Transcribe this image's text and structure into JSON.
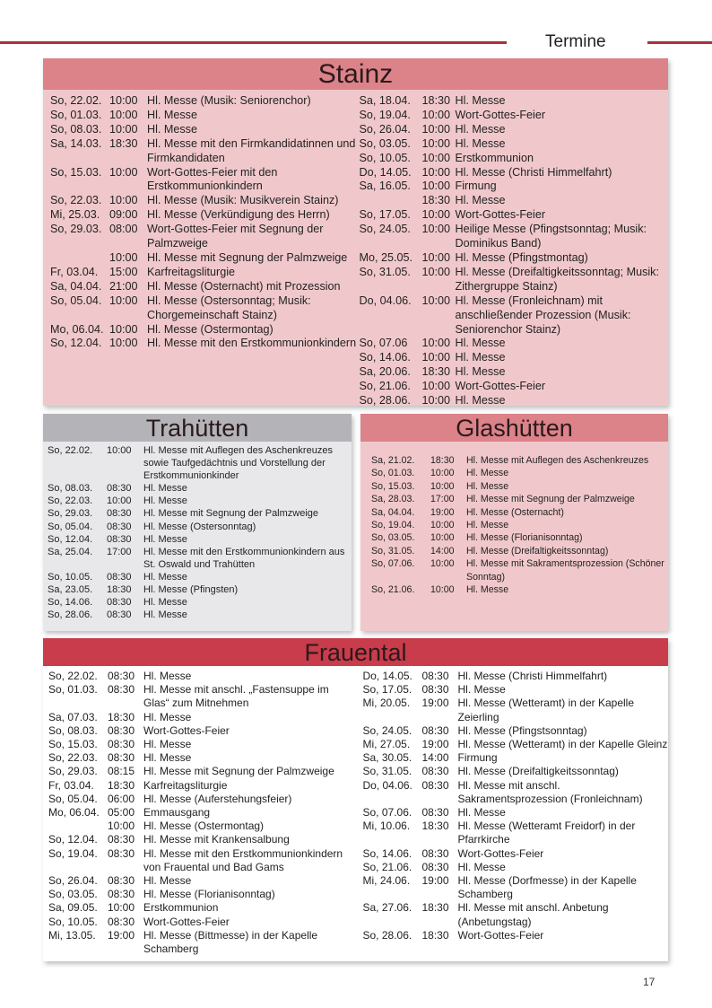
{
  "header": {
    "section_title": "Termine",
    "rule_color": "#a8323c"
  },
  "page_number": "17",
  "colors": {
    "stainz_header": "#dc8289",
    "stainz_body": "#f0c8cb",
    "trahuetten_header": "#b4b4b8",
    "trahuetten_body": "#e8e8ea",
    "frauental_header": "#c83c4b"
  },
  "stainz": {
    "title": "Stainz",
    "col1": [
      [
        "So, 22.02.",
        "10:00",
        "Hl. Messe (Musik: Seniorenchor)"
      ],
      [
        "So, 01.03.",
        "10:00",
        "Hl. Messe"
      ],
      [
        "So, 08.03.",
        "10:00",
        "Hl. Messe"
      ],
      [
        "Sa, 14.03.",
        "18:30",
        "Hl. Messe mit den Firmkandidatinnen und Firmkandidaten"
      ],
      [
        "So, 15.03.",
        "10:00",
        "Wort-Gottes-Feier mit den Erstkommunionkindern"
      ],
      [
        "So, 22.03.",
        "10:00",
        "Hl. Messe (Musik: Musikverein Stainz)"
      ],
      [
        "Mi, 25.03.",
        "09:00",
        "Hl. Messe (Verkündigung des Herrn)"
      ],
      [
        "So, 29.03.",
        "08:00",
        "Wort-Gottes-Feier mit Segnung der Palmzweige"
      ],
      [
        "",
        "10:00",
        "Hl. Messe mit Segnung der Palmzweige"
      ],
      [
        "Fr, 03.04.",
        "15:00",
        "Karfreitagsliturgie"
      ],
      [
        "Sa, 04.04.",
        "21:00",
        "Hl. Messe (Osternacht) mit Prozession"
      ],
      [
        "So, 05.04.",
        "10:00",
        "Hl. Messe (Ostersonntag; Musik: Chorgemeinschaft Stainz)"
      ],
      [
        "Mo, 06.04.",
        "10:00",
        "Hl. Messe (Ostermontag)"
      ],
      [
        "So, 12.04.",
        "10:00",
        "Hl. Messe mit den Erstkommunionkindern"
      ]
    ],
    "col2": [
      [
        "Sa, 18.04.",
        "18:30",
        "Hl. Messe"
      ],
      [
        "So, 19.04.",
        "10:00",
        "Wort-Gottes-Feier"
      ],
      [
        "So, 26.04.",
        "10:00",
        "Hl. Messe"
      ],
      [
        "So, 03.05.",
        "10:00",
        "Hl. Messe"
      ],
      [
        "So, 10.05.",
        "10:00",
        "Erstkommunion"
      ],
      [
        "Do, 14.05.",
        "10:00",
        "Hl. Messe (Christi Himmelfahrt)"
      ],
      [
        "Sa, 16.05.",
        "10:00",
        "Firmung"
      ],
      [
        "",
        "18:30",
        "Hl. Messe"
      ],
      [
        "So, 17.05.",
        "10:00",
        "Wort-Gottes-Feier"
      ],
      [
        "So, 24.05.",
        "10:00",
        "Heilige Messe (Pfingstsonntag; Musik: Dominikus Band)"
      ],
      [
        "Mo, 25.05.",
        "10:00",
        "Hl. Messe (Pfingstmontag)"
      ],
      [
        "So, 31.05.",
        "10:00",
        "Hl. Messe (Dreifaltigkeitssonntag; Musik: Zithergruppe Stainz)"
      ],
      [
        "Do, 04.06.",
        "10:00",
        "Hl. Messe (Fronleichnam) mit anschließender Prozession (Musik: Seniorenchor Stainz)"
      ],
      [
        "So, 07.06",
        "10:00",
        "Hl. Messe"
      ],
      [
        "So, 14.06.",
        "10:00",
        "Hl. Messe"
      ],
      [
        "Sa, 20.06.",
        "18:30",
        "Hl. Messe"
      ],
      [
        "So, 21.06.",
        "10:00",
        "Wort-Gottes-Feier"
      ],
      [
        "So, 28.06.",
        "10:00",
        "Hl. Messe"
      ]
    ]
  },
  "trahuetten": {
    "title": "Trahütten",
    "rows": [
      [
        "So, 22.02.",
        "10:00",
        "Hl. Messe mit Auflegen des Aschenkreuzes sowie Taufgedächtnis und Vorstellung der Erstkommunionkinder"
      ],
      [
        "So, 08.03.",
        "08:30",
        "Hl. Messe"
      ],
      [
        "So, 22.03.",
        "10:00",
        "Hl. Messe"
      ],
      [
        "So, 29.03.",
        "08:30",
        "Hl. Messe mit Segnung der Palmzweige"
      ],
      [
        "So, 05.04.",
        "08:30",
        "Hl. Messe (Ostersonntag)"
      ],
      [
        "So, 12.04.",
        "08:30",
        "Hl. Messe"
      ],
      [
        "Sa, 25.04.",
        "17:00",
        "Hl. Messe mit den Erstkommunionkindern aus St. Oswald und Trahütten"
      ],
      [
        "So, 10.05.",
        "08:30",
        "Hl. Messe"
      ],
      [
        "Sa, 23.05.",
        "18:30",
        "Hl. Messe (Pfingsten)"
      ],
      [
        "So, 14.06.",
        "08:30",
        "Hl. Messe"
      ],
      [
        "So, 28.06.",
        "08:30",
        "Hl. Messe"
      ]
    ]
  },
  "glashuetten": {
    "title": "Glashütten",
    "rows": [
      [
        "Sa, 21.02.",
        "18:30",
        "Hl. Messe mit Auflegen des Aschenkreuzes"
      ],
      [
        "So, 01.03.",
        "10:00",
        "Hl. Messe"
      ],
      [
        "So, 15.03.",
        "10:00",
        "Hl. Messe"
      ],
      [
        "Sa, 28.03.",
        "17:00",
        "Hl. Messe mit Segnung der Palmzweige"
      ],
      [
        "Sa, 04.04.",
        "19:00",
        "Hl. Messe (Osternacht)"
      ],
      [
        "So, 19.04.",
        "10:00",
        "Hl. Messe"
      ],
      [
        "So, 03.05.",
        "10:00",
        "Hl. Messe (Florianisonntag)"
      ],
      [
        "So, 31.05.",
        "14:00",
        "Hl. Messe (Dreifaltigkeitssonntag)"
      ],
      [
        "So, 07.06.",
        "10:00",
        "Hl. Messe mit Sakramentsprozession (Schöner Sonntag)"
      ],
      [
        "So, 21.06.",
        "10:00",
        "Hl. Messe"
      ]
    ]
  },
  "frauental": {
    "title": "Frauental",
    "col1": [
      [
        "So, 22.02.",
        "08:30",
        "Hl. Messe"
      ],
      [
        "So, 01.03.",
        "08:30",
        "Hl. Messe mit anschl. „Fastensuppe im Glas“ zum Mitnehmen"
      ],
      [
        "Sa, 07.03.",
        "18:30",
        "Hl. Messe"
      ],
      [
        "So, 08.03.",
        "08:30",
        "Wort-Gottes-Feier"
      ],
      [
        "So, 15.03.",
        "08:30",
        "Hl. Messe"
      ],
      [
        "So, 22.03.",
        "08:30",
        "Hl. Messe"
      ],
      [
        "So, 29.03.",
        "08:15",
        "Hl. Messe mit Segnung der Palmzweige"
      ],
      [
        "Fr, 03.04.",
        "18:30",
        "Karfreitagsliturgie"
      ],
      [
        "So, 05.04.",
        "06:00",
        "Hl. Messe (Auferstehungsfeier)"
      ],
      [
        "Mo, 06.04.",
        "05:00",
        "Emmausgang"
      ],
      [
        "",
        "10:00",
        "Hl. Messe (Ostermontag)"
      ],
      [
        "So, 12.04.",
        "08:30",
        "Hl. Messe mit Krankensalbung"
      ],
      [
        "So, 19.04.",
        "08:30",
        "Hl. Messe mit den Erstkommunionkindern von Frauental und Bad Gams"
      ],
      [
        "So, 26.04.",
        "08:30",
        "Hl. Messe"
      ],
      [
        "So, 03.05.",
        "08:30",
        "Hl. Messe (Florianisonntag)"
      ],
      [
        "Sa, 09.05.",
        "10:00",
        "Erstkommunion"
      ],
      [
        "So, 10.05.",
        "08:30",
        "Wort-Gottes-Feier"
      ],
      [
        "Mi, 13.05.",
        "19:00",
        "Hl. Messe (Bittmesse) in der Kapelle Schamberg"
      ]
    ],
    "col2": [
      [
        "Do, 14.05.",
        "08:30",
        "Hl. Messe (Christi Himmelfahrt)"
      ],
      [
        "So, 17.05.",
        "08:30",
        "Hl. Messe"
      ],
      [
        "Mi, 20.05.",
        "19:00",
        "Hl. Messe (Wetteramt) in der Kapelle Zeierling"
      ],
      [
        "So, 24.05.",
        "08:30",
        "Hl. Messe (Pfingstsonntag)"
      ],
      [
        "Mi, 27.05.",
        "19:00",
        "Hl. Messe (Wetteramt) in der Kapelle Gleinz"
      ],
      [
        "Sa, 30.05.",
        "14:00",
        "Firmung"
      ],
      [
        "So, 31.05.",
        "08:30",
        "Hl. Messe (Dreifaltigkeitssonntag)"
      ],
      [
        "Do, 04.06.",
        "08:30",
        "Hl. Messe mit anschl. Sakramentsprozession (Fronleichnam)"
      ],
      [
        "So, 07.06.",
        "08:30",
        "Hl. Messe"
      ],
      [
        "Mi, 10.06.",
        "18:30",
        "Hl. Messe (Wetteramt Freidorf) in der Pfarrkirche"
      ],
      [
        "So, 14.06.",
        "08:30",
        "Wort-Gottes-Feier"
      ],
      [
        "So, 21.06.",
        "08:30",
        "Hl. Messe"
      ],
      [
        "Mi, 24.06.",
        "19:00",
        "Hl. Messe (Dorfmesse) in der Kapelle Schamberg"
      ],
      [
        "Sa, 27.06.",
        "18:30",
        "Hl. Messe mit anschl. Anbetung (Anbetungstag)"
      ],
      [
        "So, 28.06.",
        "18:30",
        "Wort-Gottes-Feier"
      ]
    ]
  }
}
